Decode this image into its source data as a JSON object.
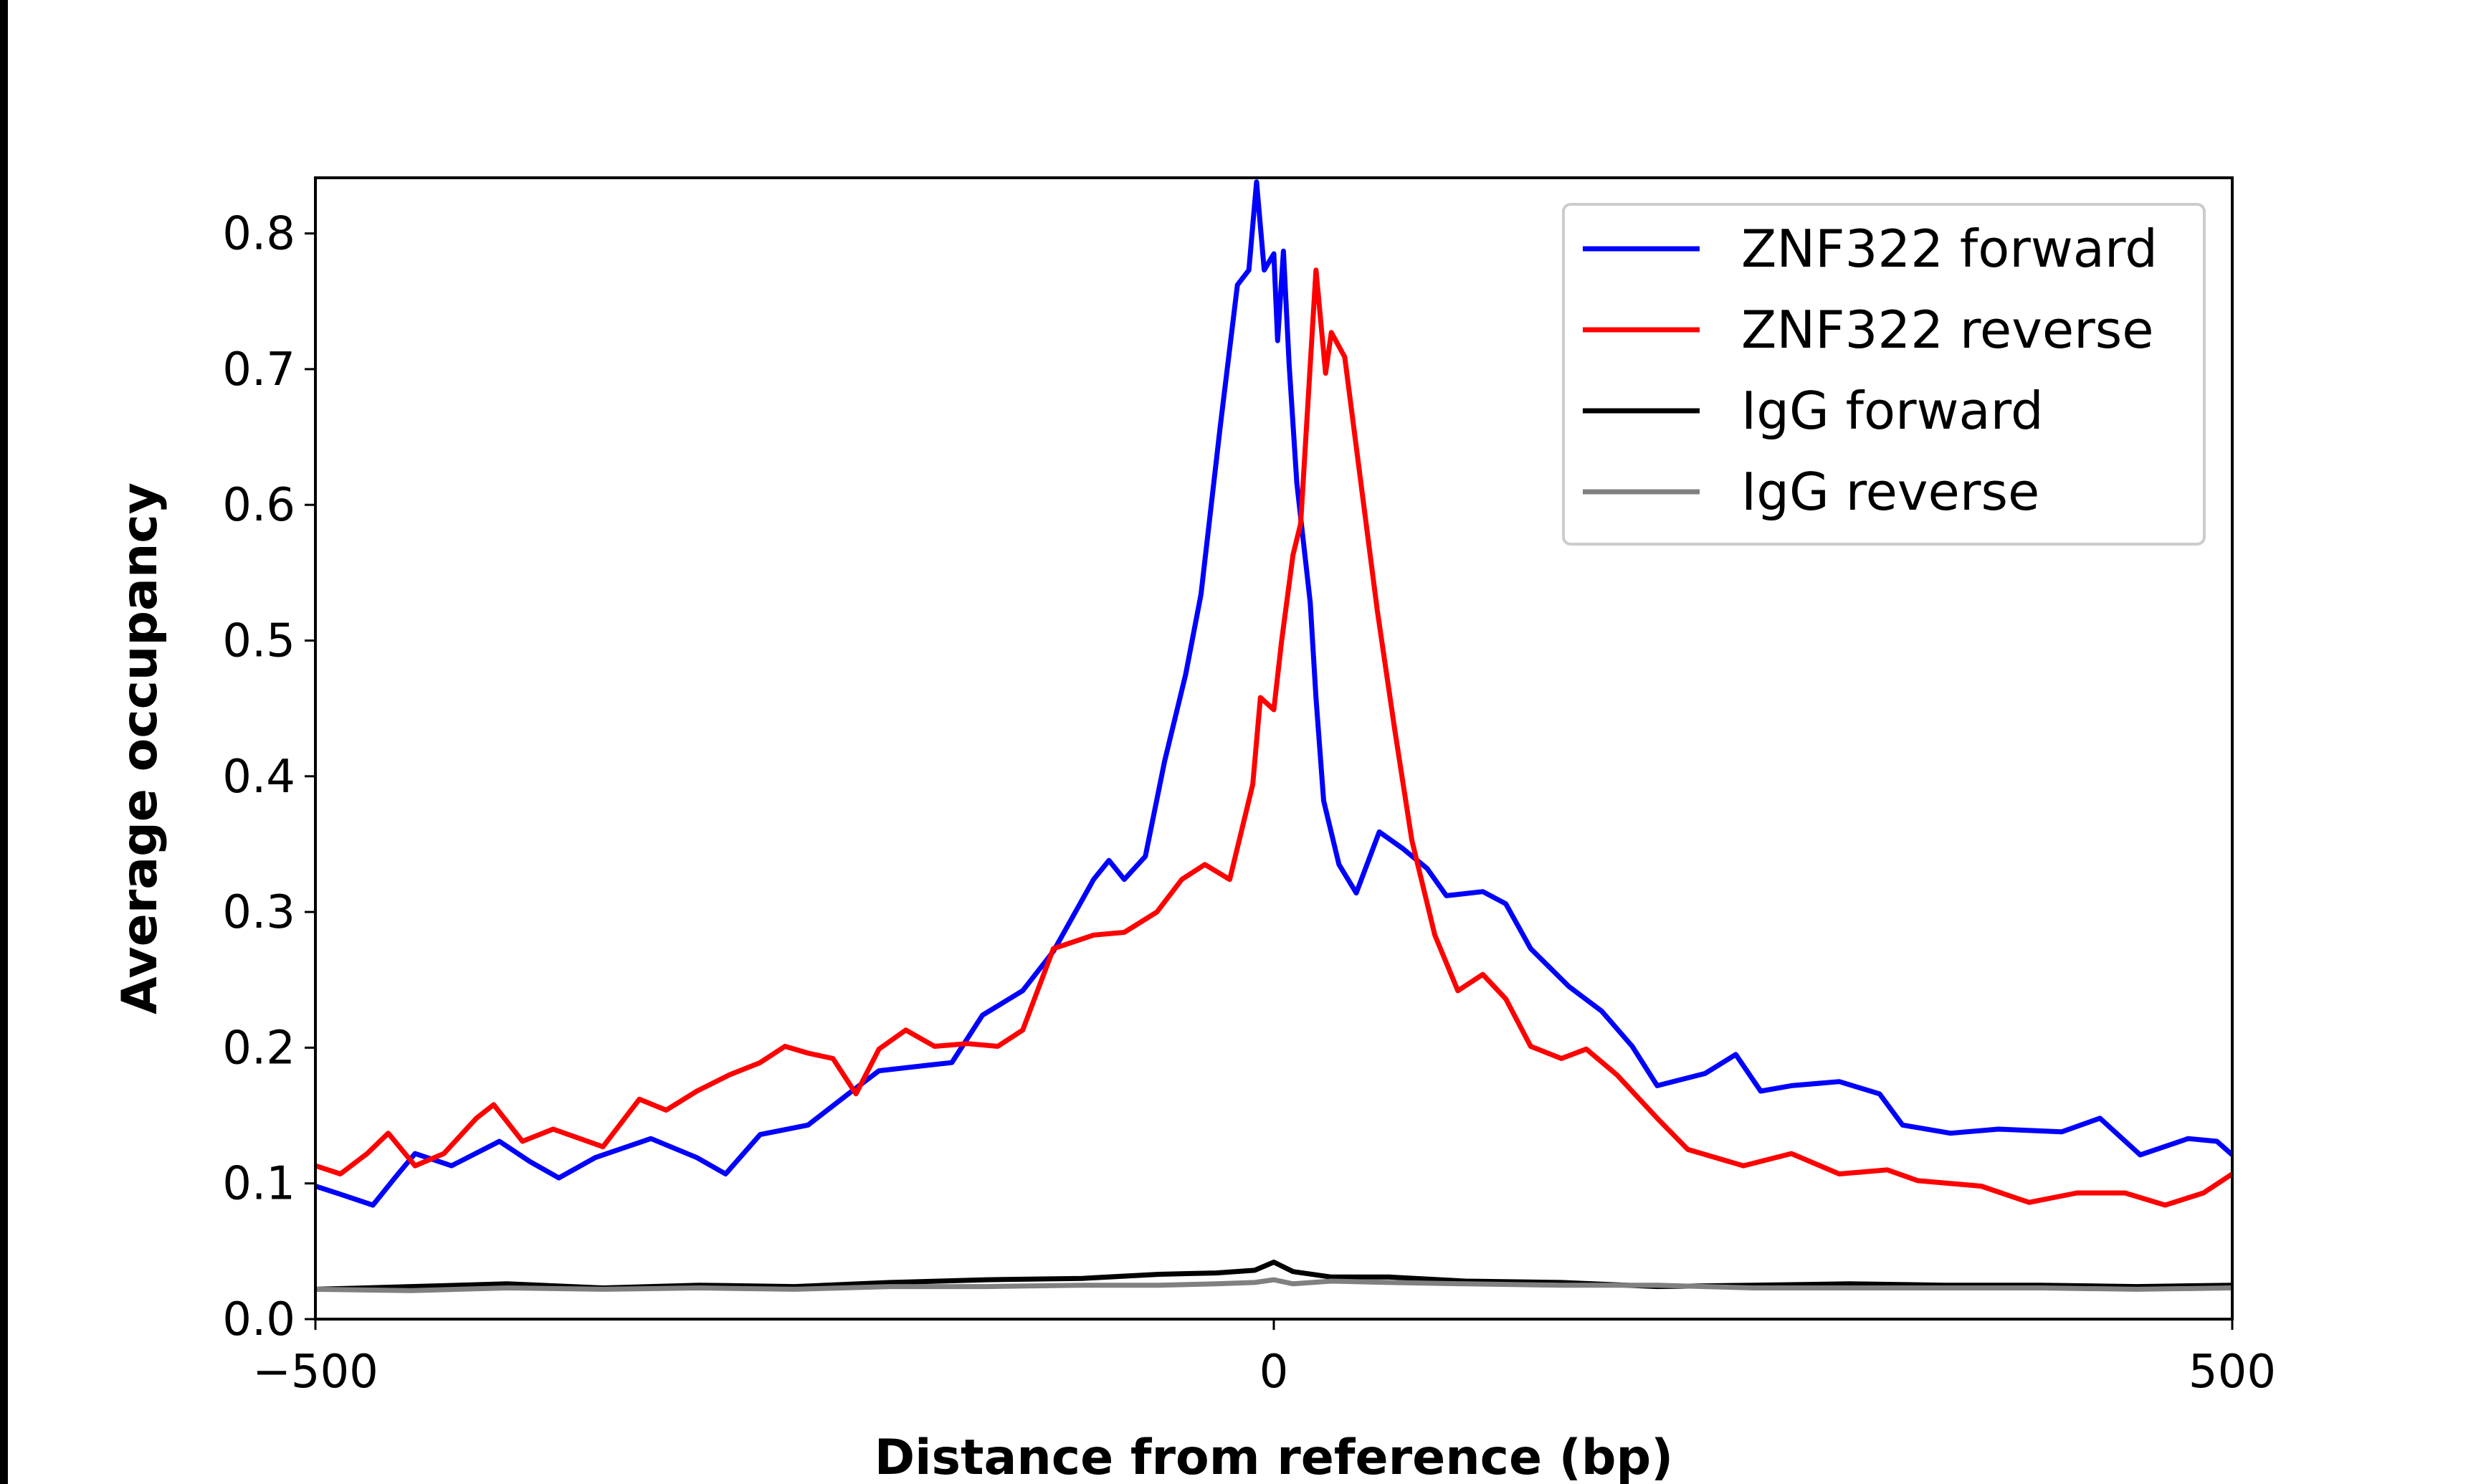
{
  "chart_data": {
    "type": "line",
    "title": "",
    "xlabel": "Distance from reference (bp)",
    "ylabel": "Average occupancy",
    "xlim": [
      -500,
      500
    ],
    "ylim": [
      0,
      0.841
    ],
    "xticks": [
      -500,
      0,
      500
    ],
    "xtick_labels": [
      "−500",
      "0",
      "500"
    ],
    "yticks": [
      0.0,
      0.1,
      0.2,
      0.3,
      0.4,
      0.5,
      0.6,
      0.7,
      0.8
    ],
    "ytick_labels": [
      "0.0",
      "0.1",
      "0.2",
      "0.3",
      "0.4",
      "0.5",
      "0.6",
      "0.7",
      "0.8"
    ],
    "grid": false,
    "legend_position": "top-right",
    "series": [
      {
        "name": "ZNF322 forward",
        "color": "#0000ff",
        "x": [
          -500,
          -487,
          -470,
          -458,
          -448,
          -429,
          -404,
          -388,
          -373,
          -354,
          -325,
          -301,
          -286,
          -268,
          -243,
          -222,
          -206,
          -181,
          -168,
          -152,
          -131,
          -115,
          -94,
          -86,
          -78,
          -67,
          -57,
          -46,
          -38,
          -28,
          -19,
          -13,
          -9,
          -5,
          0,
          2,
          5,
          8,
          12,
          19,
          22,
          26,
          34,
          43,
          55,
          67,
          80,
          90,
          109,
          121,
          134,
          154,
          171,
          187,
          200,
          225,
          241,
          254,
          270,
          295,
          316,
          328,
          353,
          378,
          411,
          431,
          452,
          477,
          492,
          500
        ],
        "y": [
          0.098,
          0.092,
          0.084,
          0.105,
          0.122,
          0.113,
          0.131,
          0.116,
          0.104,
          0.119,
          0.133,
          0.119,
          0.107,
          0.136,
          0.143,
          0.166,
          0.183,
          0.187,
          0.189,
          0.224,
          0.242,
          0.271,
          0.324,
          0.338,
          0.324,
          0.341,
          0.411,
          0.475,
          0.534,
          0.657,
          0.762,
          0.773,
          0.838,
          0.773,
          0.785,
          0.721,
          0.787,
          0.703,
          0.616,
          0.528,
          0.458,
          0.382,
          0.335,
          0.314,
          0.359,
          0.347,
          0.332,
          0.312,
          0.315,
          0.306,
          0.273,
          0.245,
          0.227,
          0.201,
          0.172,
          0.181,
          0.195,
          0.168,
          0.172,
          0.175,
          0.166,
          0.143,
          0.137,
          0.14,
          0.138,
          0.148,
          0.121,
          0.133,
          0.131,
          0.121
        ]
      },
      {
        "name": "ZNF322 reverse",
        "color": "#ff0000",
        "x": [
          -500,
          -487,
          -473,
          -462,
          -448,
          -433,
          -416,
          -407,
          -392,
          -376,
          -350,
          -331,
          -317,
          -301,
          -284,
          -268,
          -255,
          -243,
          -230,
          -218,
          -206,
          -192,
          -177,
          -160,
          -144,
          -131,
          -115,
          -94,
          -78,
          -61,
          -48,
          -36,
          -23,
          -11,
          -7,
          0,
          4,
          10,
          14,
          22,
          27,
          30,
          37,
          45,
          54,
          63,
          72,
          84,
          96,
          109,
          121,
          134,
          150,
          163,
          179,
          200,
          216,
          245,
          270,
          295,
          320,
          336,
          369,
          394,
          419,
          444,
          465,
          485,
          500
        ],
        "y": [
          0.113,
          0.107,
          0.122,
          0.137,
          0.113,
          0.122,
          0.148,
          0.158,
          0.131,
          0.14,
          0.127,
          0.162,
          0.154,
          0.168,
          0.18,
          0.189,
          0.201,
          0.196,
          0.192,
          0.166,
          0.199,
          0.213,
          0.201,
          0.203,
          0.201,
          0.213,
          0.273,
          0.283,
          0.285,
          0.3,
          0.324,
          0.335,
          0.324,
          0.394,
          0.458,
          0.449,
          0.499,
          0.563,
          0.586,
          0.773,
          0.697,
          0.727,
          0.709,
          0.621,
          0.522,
          0.435,
          0.353,
          0.283,
          0.242,
          0.254,
          0.236,
          0.201,
          0.192,
          0.199,
          0.18,
          0.148,
          0.125,
          0.113,
          0.122,
          0.107,
          0.11,
          0.102,
          0.098,
          0.086,
          0.093,
          0.093,
          0.084,
          0.093,
          0.107
        ]
      },
      {
        "name": "IgG forward",
        "color": "#000000",
        "x": [
          -500,
          -450,
          -400,
          -350,
          -300,
          -250,
          -200,
          -150,
          -100,
          -60,
          -30,
          -10,
          0,
          10,
          30,
          60,
          100,
          150,
          200,
          250,
          300,
          350,
          400,
          450,
          500
        ],
        "y": [
          0.022,
          0.024,
          0.026,
          0.023,
          0.025,
          0.024,
          0.027,
          0.029,
          0.03,
          0.033,
          0.034,
          0.036,
          0.042,
          0.035,
          0.031,
          0.031,
          0.028,
          0.027,
          0.024,
          0.025,
          0.026,
          0.025,
          0.025,
          0.024,
          0.025
        ]
      },
      {
        "name": "IgG reverse",
        "color": "#808080",
        "x": [
          -500,
          -450,
          -400,
          -350,
          -300,
          -250,
          -200,
          -150,
          -100,
          -60,
          -30,
          -10,
          0,
          10,
          30,
          60,
          100,
          150,
          200,
          250,
          300,
          350,
          400,
          450,
          500
        ],
        "y": [
          0.022,
          0.021,
          0.023,
          0.022,
          0.023,
          0.022,
          0.024,
          0.024,
          0.025,
          0.025,
          0.026,
          0.027,
          0.029,
          0.026,
          0.028,
          0.027,
          0.026,
          0.025,
          0.025,
          0.023,
          0.023,
          0.023,
          0.023,
          0.022,
          0.023
        ]
      }
    ]
  }
}
